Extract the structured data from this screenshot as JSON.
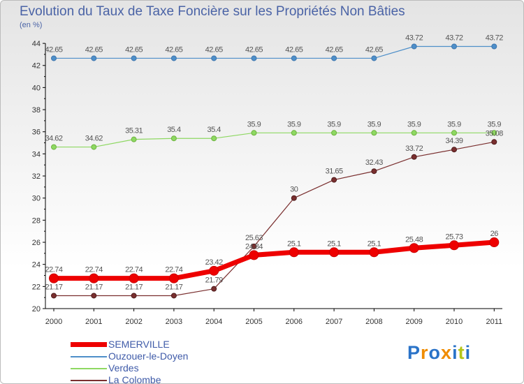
{
  "chart_data": {
    "type": "line",
    "title": "Evolution du Taux de Taxe Foncière sur les Propriétés Non Bâties",
    "unit_label": "(en %)",
    "x": [
      "2000",
      "2001",
      "2002",
      "2003",
      "2004",
      "2005",
      "2006",
      "2007",
      "2008",
      "2009",
      "2010",
      "2011"
    ],
    "ylim": [
      20,
      44
    ],
    "yticks": [
      "20",
      "22",
      "24",
      "26",
      "28",
      "30",
      "32",
      "34",
      "36",
      "38",
      "40",
      "42",
      "44"
    ],
    "grid": false,
    "legend_position": "bottom-left",
    "series": [
      {
        "name": "SEMERVILLE",
        "color": "#ee0000",
        "values": [
          22.74,
          22.74,
          22.74,
          22.74,
          23.42,
          24.84,
          25.1,
          25.1,
          25.1,
          25.48,
          25.73,
          26
        ],
        "labels": [
          "22.74",
          "22.74",
          "22.74",
          "22.74",
          "23.42",
          "24.84",
          "25.1",
          "25.1",
          "25.1",
          "25.48",
          "25.73",
          "26"
        ]
      },
      {
        "name": "Ouzouer-le-Doyen",
        "color": "#4e8fc9",
        "values": [
          42.65,
          42.65,
          42.65,
          42.65,
          42.65,
          42.65,
          42.65,
          42.65,
          42.65,
          43.72,
          43.72,
          43.72
        ],
        "labels": [
          "42.65",
          "42.65",
          "42.65",
          "42.65",
          "42.65",
          "42.65",
          "42.65",
          "42.65",
          "42.65",
          "43.72",
          "43.72",
          "43.72"
        ]
      },
      {
        "name": "Verdes",
        "color": "#8ed862",
        "values": [
          34.62,
          34.62,
          35.31,
          35.4,
          35.4,
          35.9,
          35.9,
          35.9,
          35.9,
          35.9,
          35.9,
          35.9
        ],
        "labels": [
          "34.62",
          "34.62",
          "35.31",
          "35.4",
          "35.4",
          "35.9",
          "35.9",
          "35.9",
          "35.9",
          "35.9",
          "35.9",
          "35.9"
        ]
      },
      {
        "name": "La Colombe",
        "color": "#7a2f2f",
        "values": [
          21.17,
          21.17,
          21.17,
          21.17,
          21.79,
          25.63,
          30,
          31.65,
          32.43,
          33.72,
          34.39,
          35.08
        ],
        "labels": [
          "21.17",
          "21.17",
          "21.17",
          "21.17",
          "21.79",
          "25.63",
          "30",
          "31.65",
          "32.43",
          "33.72",
          "34.39",
          "35.08"
        ]
      }
    ]
  },
  "logo": {
    "text": "Proxiti",
    "letter_colors": [
      "#2a73c8",
      "#f08c00",
      "#2a73c8",
      "#f08c00",
      "#2a73c8",
      "#b5c51a",
      "#2a73c8"
    ]
  }
}
